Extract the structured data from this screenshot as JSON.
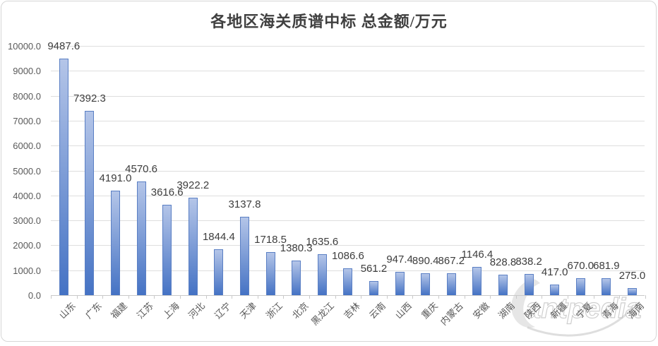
{
  "chart_data": {
    "type": "bar",
    "title": "各地区海关质谱中标 总金额/万元",
    "categories": [
      "山东",
      "广东",
      "福建",
      "江苏",
      "上海",
      "河北",
      "辽宁",
      "天津",
      "浙江",
      "北京",
      "黑龙江",
      "吉林",
      "云南",
      "山西",
      "重庆",
      "内蒙古",
      "安徽",
      "湖南",
      "陕西",
      "新疆",
      "宁夏",
      "青海",
      "海南"
    ],
    "values": [
      9487.6,
      7392.3,
      4191.0,
      4570.6,
      3616.6,
      3922.2,
      1844.4,
      3137.8,
      1718.5,
      1380.3,
      1635.6,
      1086.6,
      561.2,
      947.4,
      890.4,
      867.2,
      1146.4,
      828.8,
      838.2,
      417.0,
      670.0,
      681.9,
      275.0
    ],
    "ylim": [
      0,
      10000
    ],
    "ytick_step": 1000,
    "grid": true,
    "legend": false,
    "colors": {
      "bar_fill_top": "#b4c5e8",
      "bar_fill_bottom": "#4472c4",
      "bar_border": "#5a7fc4",
      "gridline": "#dedede",
      "axis_text": "#595959",
      "value_label": "#3d3d3d",
      "title": "#404040"
    }
  },
  "watermark": {
    "text": "antpedia"
  }
}
